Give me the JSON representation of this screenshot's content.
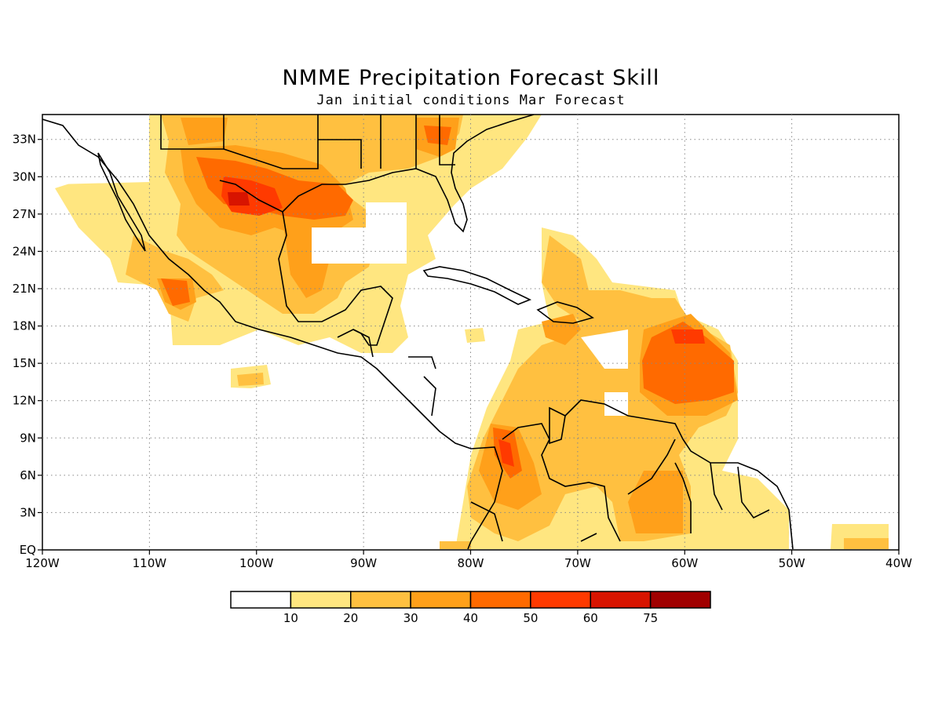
{
  "title": "NMME Precipitation Forecast Skill",
  "subtitle": "Jan initial conditions  Mar Forecast",
  "map": {
    "region": "Gulf of Mexico, Central America, Caribbean, northern South America",
    "lon_range": [
      -120,
      -40
    ],
    "lat_range": [
      0,
      35
    ],
    "lat_labels": [
      "33N",
      "30N",
      "27N",
      "24N",
      "21N",
      "18N",
      "15N",
      "12N",
      "9N",
      "6N",
      "3N",
      "EQ"
    ],
    "lon_labels": [
      "120W",
      "110W",
      "100W",
      "90W",
      "80W",
      "70W",
      "60W",
      "50W",
      "40W"
    ],
    "grid": "dotted"
  },
  "legend": {
    "labels": [
      "10",
      "20",
      "30",
      "40",
      "50",
      "60",
      "75"
    ],
    "colors": [
      "#ffffff",
      "#ffe680",
      "#ffc040",
      "#ffa01a",
      "#ff6a00",
      "#ff3a00",
      "#d81400",
      "#a00000"
    ]
  }
}
